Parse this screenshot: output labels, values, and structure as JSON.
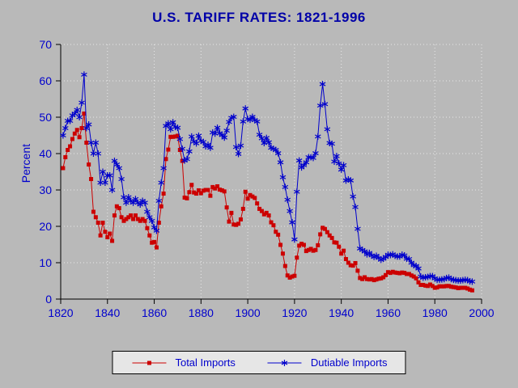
{
  "colors": {
    "page_bg": "#b9b9b9",
    "title_text": "#0000a8",
    "axis_text": "#0000cd",
    "grid": "#e9e9e9",
    "axis_line": "#000000",
    "legend_bg": "#e6e6e6",
    "legend_border": "#000000",
    "legend_text": "#0000cd"
  },
  "chart_data": {
    "type": "line",
    "title": "U.S. TARIFF RATES: 1821-1996",
    "xlabel": "",
    "ylabel": "Percent",
    "xlim": [
      1820,
      2000
    ],
    "ylim": [
      0,
      70
    ],
    "x_ticks": [
      1820,
      1840,
      1860,
      1880,
      1900,
      1920,
      1940,
      1960,
      1980,
      2000
    ],
    "y_ticks": [
      0,
      10,
      20,
      30,
      40,
      50,
      60,
      70
    ],
    "grid": true,
    "grid_style": "dotted",
    "legend_position": "bottom-center",
    "x": {
      "start": 1821,
      "end": 1996,
      "step": 1
    },
    "series": [
      {
        "name": "Total Imports",
        "color": "#cc0000",
        "marker": "square",
        "values": [
          36,
          39,
          41,
          42,
          44,
          45.5,
          46.5,
          44.5,
          47,
          51,
          43,
          37,
          33,
          24,
          22.5,
          21,
          17.5,
          21,
          18.5,
          17,
          18,
          16,
          23,
          25.5,
          25,
          22.5,
          21.5,
          22,
          22.5,
          23,
          22,
          23,
          22,
          21.5,
          22,
          21.5,
          19.5,
          17.5,
          15.5,
          15.7,
          14.2,
          21,
          25.5,
          29,
          38.5,
          41.1,
          44.6,
          44.6,
          44.7,
          44.9,
          41,
          38,
          27.9,
          27.7,
          29.4,
          31.4,
          29.3,
          29,
          29.9,
          29.1,
          29.8,
          30,
          30,
          28.4,
          30.8,
          30.4,
          31,
          30.1,
          29.9,
          29.6,
          25.2,
          21.3,
          23.7,
          20.5,
          20.4,
          20.7,
          21.9,
          24.8,
          29.5,
          27.6,
          28.6,
          28.2,
          27.8,
          26.3,
          24.8,
          24.2,
          23.3,
          23.7,
          23,
          21.1,
          20.3,
          18.5,
          17.7,
          14.9,
          12.5,
          9.1,
          6.5,
          5.9,
          6.2,
          6.4,
          11.4,
          14.7,
          15.2,
          14.9,
          13.2,
          13.5,
          13.8,
          13.3,
          13.5,
          14.8,
          17.8,
          19.6,
          19.3,
          18.4,
          17.5,
          16.8,
          15.6,
          15.5,
          14.4,
          12.5,
          13.3,
          11,
          10,
          9.3,
          9.2,
          9.9,
          7.8,
          5.8,
          5.5,
          6,
          5.5,
          5.4,
          5.5,
          5.2,
          5.4,
          5.6,
          5.7,
          6,
          6.6,
          7.4,
          7.2,
          7.5,
          7.3,
          7.2,
          7.1,
          7.3,
          7.2,
          6.9,
          6.9,
          6.5,
          6.2,
          5.7,
          4.6,
          3.9,
          3.9,
          3.7,
          3.6,
          4,
          3.6,
          3.1,
          3.2,
          3.5,
          3.5,
          3.5,
          3.6,
          3.6,
          3.4,
          3.3,
          3.2,
          3,
          3.1,
          3.1,
          3.1,
          2.9,
          2.6,
          2.4
        ]
      },
      {
        "name": "Dutiable Imports",
        "color": "#0000cc",
        "marker": "asterisk",
        "values": [
          45,
          47,
          49,
          49,
          50.5,
          51,
          52,
          50,
          54,
          61.7,
          47,
          48,
          43,
          40,
          43,
          40,
          32,
          35,
          32,
          34,
          34,
          30,
          38,
          37,
          36,
          33,
          28,
          26.5,
          28,
          27,
          26.5,
          27.5,
          26.5,
          26,
          27,
          26.5,
          24,
          22.5,
          21.5,
          19.7,
          18.8,
          27,
          32,
          36,
          47.6,
          48.3,
          46.7,
          48.6,
          47.3,
          47.1,
          44,
          41.3,
          38.1,
          38.5,
          40.6,
          44.7,
          43.3,
          42.8,
          44.9,
          43.5,
          43.2,
          42,
          42.4,
          41.6,
          45.8,
          45.5,
          47.1,
          45.6,
          45.1,
          44.4,
          46.3,
          48.7,
          49.8,
          50.1,
          41.8,
          39.9,
          42.2,
          48.8,
          52.4,
          49.5,
          49.3,
          50.1,
          49.2,
          48.8,
          45.2,
          44.2,
          42.9,
          44.3,
          43.1,
          41.6,
          41.3,
          41,
          40.1,
          37.6,
          33.5,
          30.8,
          27.3,
          24.2,
          21.1,
          16.4,
          29.5,
          38.1,
          36.2,
          36.8,
          37.6,
          39,
          39,
          38.8,
          40.1,
          44.7,
          53.2,
          59.1,
          53.6,
          46.7,
          42.9,
          42.7,
          37.8,
          39.3,
          37.3,
          35.6,
          36.8,
          32.6,
          32.9,
          32.6,
          28.2,
          25.3,
          19.3,
          13.9,
          13.5,
          13.1,
          12.3,
          12.7,
          12,
          11.6,
          11.9,
          11.3,
          10.8,
          11.1,
          11.6,
          12.2,
          12.1,
          12.3,
          11.9,
          11.7,
          11.7,
          12.2,
          12,
          11.1,
          11,
          10,
          9.3,
          9.1,
          8.4,
          6.2,
          5.9,
          6,
          6.1,
          6.3,
          6.3,
          5.7,
          5.3,
          5.3,
          5.4,
          5.5,
          5.8,
          5.9,
          5.5,
          5.3,
          5.2,
          5.1,
          5.1,
          5.2,
          5.3,
          5.2,
          4.9,
          4.8
        ]
      }
    ]
  }
}
